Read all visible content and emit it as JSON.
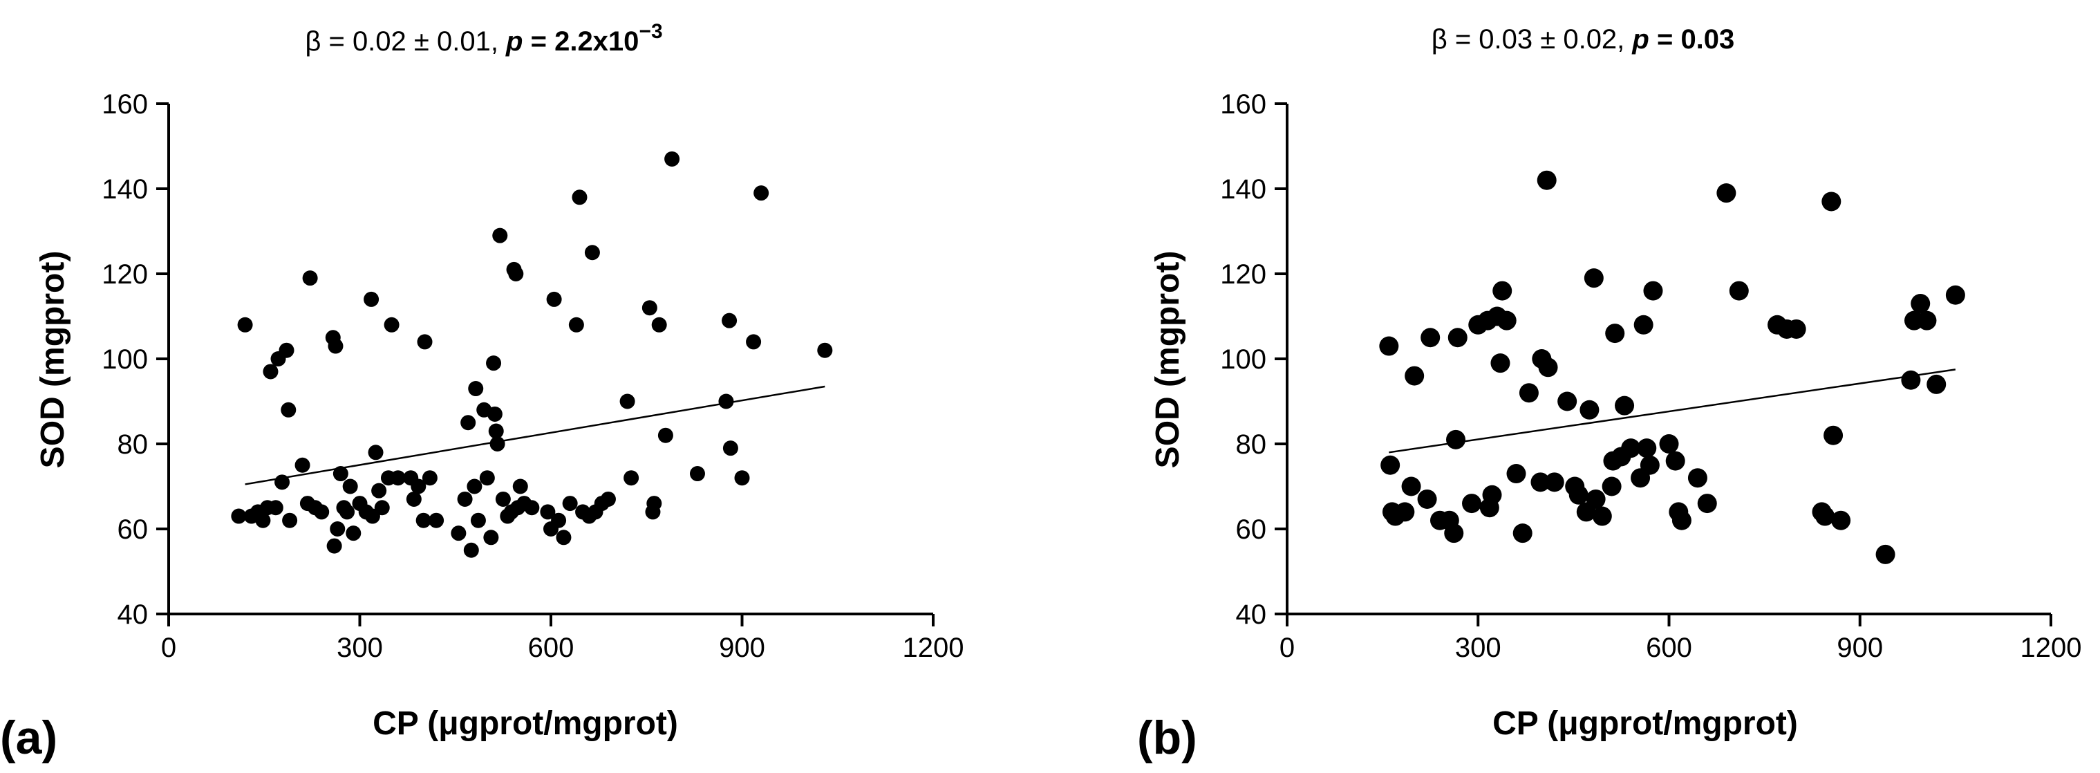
{
  "chart_data": [
    {
      "type": "scatter",
      "panel_label": "(a)",
      "annotation": {
        "prefix": "β = 0.02 ± 0.01,  ",
        "p_symbol": "p",
        "p_equals": " = ",
        "p_value": "2.2x10",
        "p_exponent": "−3"
      },
      "xlabel": "CP (μgprot/mgprot)",
      "ylabel": "SOD (mgprot)",
      "xlim": [
        0,
        1200
      ],
      "ylim": [
        40,
        160
      ],
      "xticks": [
        "0",
        "300",
        "600",
        "900",
        "1200"
      ],
      "yticks": [
        "40",
        "60",
        "80",
        "100",
        "120",
        "140",
        "160"
      ],
      "fit_line": {
        "x": [
          120,
          1030
        ],
        "y": [
          70.5,
          93.5
        ]
      },
      "points": [
        [
          110,
          63
        ],
        [
          120,
          108
        ],
        [
          130,
          63
        ],
        [
          140,
          64
        ],
        [
          148,
          62
        ],
        [
          155,
          65
        ],
        [
          160,
          97
        ],
        [
          168,
          65
        ],
        [
          172,
          100
        ],
        [
          178,
          71
        ],
        [
          185,
          102
        ],
        [
          188,
          88
        ],
        [
          190,
          62
        ],
        [
          210,
          75
        ],
        [
          218,
          66
        ],
        [
          222,
          119
        ],
        [
          230,
          65
        ],
        [
          240,
          64
        ],
        [
          258,
          105
        ],
        [
          260,
          56
        ],
        [
          262,
          103
        ],
        [
          265,
          60
        ],
        [
          270,
          73
        ],
        [
          275,
          65
        ],
        [
          280,
          64
        ],
        [
          285,
          70
        ],
        [
          290,
          59
        ],
        [
          300,
          66
        ],
        [
          310,
          64
        ],
        [
          318,
          114
        ],
        [
          320,
          63
        ],
        [
          325,
          78
        ],
        [
          330,
          69
        ],
        [
          335,
          65
        ],
        [
          345,
          72
        ],
        [
          350,
          108
        ],
        [
          360,
          72
        ],
        [
          380,
          72
        ],
        [
          385,
          67
        ],
        [
          392,
          70
        ],
        [
          400,
          62
        ],
        [
          402,
          104
        ],
        [
          410,
          72
        ],
        [
          420,
          62
        ],
        [
          455,
          59
        ],
        [
          465,
          67
        ],
        [
          470,
          85
        ],
        [
          475,
          55
        ],
        [
          480,
          70
        ],
        [
          482,
          93
        ],
        [
          486,
          62
        ],
        [
          495,
          88
        ],
        [
          500,
          72
        ],
        [
          506,
          58
        ],
        [
          510,
          99
        ],
        [
          512,
          87
        ],
        [
          514,
          83
        ],
        [
          516,
          80
        ],
        [
          520,
          129
        ],
        [
          525,
          67
        ],
        [
          532,
          63
        ],
        [
          538,
          64
        ],
        [
          542,
          121
        ],
        [
          545,
          120
        ],
        [
          548,
          65
        ],
        [
          552,
          70
        ],
        [
          558,
          66
        ],
        [
          570,
          65
        ],
        [
          595,
          64
        ],
        [
          600,
          60
        ],
        [
          605,
          114
        ],
        [
          612,
          62
        ],
        [
          620,
          58
        ],
        [
          630,
          66
        ],
        [
          640,
          108
        ],
        [
          645,
          138
        ],
        [
          650,
          64
        ],
        [
          660,
          63
        ],
        [
          665,
          125
        ],
        [
          670,
          64
        ],
        [
          680,
          66
        ],
        [
          690,
          67
        ],
        [
          720,
          90
        ],
        [
          726,
          72
        ],
        [
          755,
          112
        ],
        [
          760,
          64
        ],
        [
          762,
          66
        ],
        [
          770,
          108
        ],
        [
          780,
          82
        ],
        [
          790,
          147
        ],
        [
          830,
          73
        ],
        [
          875,
          90
        ],
        [
          880,
          109
        ],
        [
          882,
          79
        ],
        [
          900,
          72
        ],
        [
          918,
          104
        ],
        [
          930,
          139
        ],
        [
          1030,
          102
        ]
      ]
    },
    {
      "type": "scatter",
      "panel_label": "(b)",
      "annotation": {
        "prefix": "β = 0.03 ± 0.02, ",
        "p_symbol": "p",
        "p_equals": " = ",
        "p_value": "0.03",
        "p_exponent": ""
      },
      "xlabel": "CP (μgprot/mgprot)",
      "ylabel": "SOD (mgprot)",
      "xlim": [
        0,
        1200
      ],
      "ylim": [
        40,
        160
      ],
      "xticks": [
        "0",
        "300",
        "600",
        "900",
        "1200"
      ],
      "yticks": [
        "40",
        "60",
        "80",
        "100",
        "120",
        "140",
        "160"
      ],
      "fit_line": {
        "x": [
          160,
          1050
        ],
        "y": [
          78,
          97.5
        ]
      },
      "points": [
        [
          160,
          103
        ],
        [
          162,
          75
        ],
        [
          165,
          64
        ],
        [
          170,
          63
        ],
        [
          185,
          64
        ],
        [
          195,
          70
        ],
        [
          200,
          96
        ],
        [
          220,
          67
        ],
        [
          225,
          105
        ],
        [
          240,
          62
        ],
        [
          255,
          62
        ],
        [
          262,
          59
        ],
        [
          265,
          81
        ],
        [
          268,
          105
        ],
        [
          290,
          66
        ],
        [
          300,
          108
        ],
        [
          315,
          109
        ],
        [
          318,
          65
        ],
        [
          322,
          68
        ],
        [
          330,
          110
        ],
        [
          335,
          99
        ],
        [
          338,
          116
        ],
        [
          345,
          109
        ],
        [
          360,
          73
        ],
        [
          370,
          59
        ],
        [
          380,
          92
        ],
        [
          398,
          71
        ],
        [
          400,
          100
        ],
        [
          408,
          142
        ],
        [
          410,
          98
        ],
        [
          420,
          71
        ],
        [
          440,
          90
        ],
        [
          452,
          70
        ],
        [
          458,
          68
        ],
        [
          470,
          64
        ],
        [
          475,
          88
        ],
        [
          482,
          119
        ],
        [
          485,
          67
        ],
        [
          495,
          63
        ],
        [
          510,
          70
        ],
        [
          512,
          76
        ],
        [
          515,
          106
        ],
        [
          525,
          77
        ],
        [
          530,
          89
        ],
        [
          540,
          79
        ],
        [
          555,
          72
        ],
        [
          560,
          108
        ],
        [
          565,
          79
        ],
        [
          570,
          75
        ],
        [
          575,
          116
        ],
        [
          600,
          80
        ],
        [
          610,
          76
        ],
        [
          615,
          64
        ],
        [
          620,
          62
        ],
        [
          645,
          72
        ],
        [
          660,
          66
        ],
        [
          690,
          139
        ],
        [
          710,
          116
        ],
        [
          770,
          108
        ],
        [
          785,
          107
        ],
        [
          800,
          107
        ],
        [
          840,
          64
        ],
        [
          845,
          63
        ],
        [
          855,
          137
        ],
        [
          858,
          82
        ],
        [
          870,
          62
        ],
        [
          940,
          54
        ],
        [
          980,
          95
        ],
        [
          985,
          109
        ],
        [
          995,
          113
        ],
        [
          1005,
          109
        ],
        [
          1020,
          94
        ],
        [
          1050,
          115
        ]
      ]
    }
  ]
}
